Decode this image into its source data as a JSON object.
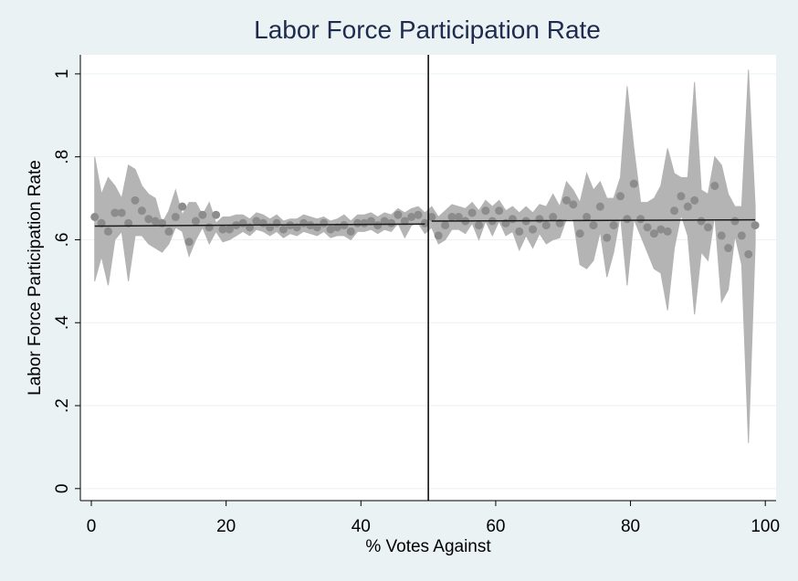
{
  "chart_data": {
    "type": "scatter",
    "title": "Labor Force Participation Rate",
    "x_label": "% Votes Against",
    "y_label": "Labor Force Participation Rate",
    "x": [
      0.5,
      1.5,
      2.5,
      3.5,
      4.5,
      5.5,
      6.5,
      7.5,
      8.5,
      9.5,
      10.5,
      11.5,
      12.5,
      13.5,
      14.5,
      15.5,
      16.5,
      17.5,
      18.5,
      19.5,
      20.5,
      21.5,
      22.5,
      23.5,
      24.5,
      25.5,
      26.5,
      27.5,
      28.5,
      29.5,
      30.5,
      31.5,
      32.5,
      33.5,
      34.5,
      35.5,
      36.5,
      37.5,
      38.5,
      39.5,
      40.5,
      41.5,
      42.5,
      43.5,
      44.5,
      45.5,
      46.5,
      47.5,
      48.5,
      49.5,
      50.5,
      51.5,
      52.5,
      53.5,
      54.5,
      55.5,
      56.5,
      57.5,
      58.5,
      59.5,
      60.5,
      61.5,
      62.5,
      63.5,
      64.5,
      65.5,
      66.5,
      67.5,
      68.5,
      69.5,
      70.5,
      71.5,
      72.5,
      73.5,
      74.5,
      75.5,
      76.5,
      77.5,
      78.5,
      79.5,
      80.5,
      81.5,
      82.5,
      83.5,
      84.5,
      85.5,
      86.5,
      87.5,
      88.5,
      89.5,
      90.5,
      91.5,
      92.5,
      93.5,
      94.5,
      95.5,
      96.5,
      97.5,
      98.5
    ],
    "values": [
      0.655,
      0.64,
      0.62,
      0.665,
      0.665,
      0.64,
      0.695,
      0.67,
      0.65,
      0.645,
      0.64,
      0.62,
      0.655,
      0.68,
      0.595,
      0.645,
      0.66,
      0.63,
      0.66,
      0.625,
      0.625,
      0.635,
      0.64,
      0.63,
      0.645,
      0.64,
      0.63,
      0.64,
      0.625,
      0.635,
      0.63,
      0.64,
      0.635,
      0.63,
      0.64,
      0.625,
      0.63,
      0.635,
      0.62,
      0.64,
      0.64,
      0.645,
      0.635,
      0.645,
      0.64,
      0.66,
      0.645,
      0.655,
      0.66,
      0.64,
      0.655,
      0.61,
      0.635,
      0.655,
      0.655,
      0.645,
      0.665,
      0.635,
      0.67,
      0.645,
      0.67,
      0.64,
      0.65,
      0.62,
      0.645,
      0.625,
      0.65,
      0.635,
      0.655,
      0.64,
      0.695,
      0.685,
      0.615,
      0.655,
      0.635,
      0.68,
      0.605,
      0.635,
      0.705,
      0.65,
      0.735,
      0.65,
      0.63,
      0.615,
      0.625,
      0.62,
      0.67,
      0.705,
      0.68,
      0.695,
      0.645,
      0.63,
      0.73,
      0.61,
      0.58,
      0.645,
      0.61,
      0.565,
      0.635
    ],
    "ci_upper": [
      0.8,
      0.71,
      0.75,
      0.73,
      0.7,
      0.78,
      0.77,
      0.73,
      0.71,
      0.7,
      0.64,
      0.67,
      0.72,
      0.66,
      0.69,
      0.69,
      0.66,
      0.69,
      0.64,
      0.655,
      0.655,
      0.66,
      0.66,
      0.65,
      0.665,
      0.66,
      0.65,
      0.66,
      0.645,
      0.65,
      0.65,
      0.66,
      0.655,
      0.65,
      0.655,
      0.645,
      0.65,
      0.66,
      0.645,
      0.66,
      0.66,
      0.665,
      0.655,
      0.665,
      0.66,
      0.675,
      0.665,
      0.675,
      0.68,
      0.665,
      0.68,
      0.655,
      0.67,
      0.685,
      0.68,
      0.675,
      0.69,
      0.67,
      0.695,
      0.68,
      0.695,
      0.67,
      0.68,
      0.665,
      0.68,
      0.665,
      0.685,
      0.68,
      0.71,
      0.68,
      0.74,
      0.72,
      0.69,
      0.76,
      0.72,
      0.74,
      0.7,
      0.7,
      0.75,
      0.97,
      0.82,
      0.69,
      0.69,
      0.7,
      0.73,
      0.82,
      0.76,
      0.75,
      0.75,
      0.98,
      0.72,
      0.71,
      0.8,
      0.78,
      0.71,
      0.68,
      0.68,
      1.01,
      0.68
    ],
    "ci_lower": [
      0.5,
      0.56,
      0.49,
      0.6,
      0.62,
      0.5,
      0.61,
      0.61,
      0.59,
      0.58,
      0.57,
      0.59,
      0.63,
      0.62,
      0.56,
      0.6,
      0.63,
      0.59,
      0.62,
      0.595,
      0.6,
      0.61,
      0.62,
      0.61,
      0.625,
      0.62,
      0.61,
      0.62,
      0.605,
      0.615,
      0.61,
      0.62,
      0.615,
      0.61,
      0.62,
      0.605,
      0.61,
      0.61,
      0.6,
      0.62,
      0.62,
      0.625,
      0.615,
      0.625,
      0.62,
      0.64,
      0.605,
      0.635,
      0.64,
      0.615,
      0.63,
      0.59,
      0.6,
      0.625,
      0.625,
      0.615,
      0.64,
      0.6,
      0.645,
      0.61,
      0.645,
      0.61,
      0.62,
      0.575,
      0.61,
      0.58,
      0.615,
      0.59,
      0.6,
      0.605,
      0.65,
      0.65,
      0.54,
      0.53,
      0.55,
      0.62,
      0.51,
      0.57,
      0.66,
      0.49,
      0.65,
      0.61,
      0.57,
      0.53,
      0.52,
      0.43,
      0.58,
      0.66,
      0.61,
      0.42,
      0.57,
      0.55,
      0.66,
      0.45,
      0.48,
      0.61,
      0.54,
      0.11,
      0.59
    ],
    "color": "#8c8c8c",
    "band_color": "#b4b4b4",
    "fit_color": "#1a1a1a",
    "fit_lines": [
      {
        "x": [
          0.5,
          49.5
        ],
        "values": [
          0.633,
          0.638
        ]
      },
      {
        "x": [
          50.5,
          98.5
        ],
        "values": [
          0.645,
          0.648
        ]
      }
    ],
    "xline": 50,
    "xlim": [
      -1.63,
      101.6
    ],
    "ylim": [
      -0.029,
      1.046
    ],
    "xticks": [
      0,
      20,
      40,
      60,
      80,
      100
    ],
    "yticks": [
      0,
      {
        "value": 0.2,
        "label": ".2"
      },
      {
        "value": 0.4,
        "label": ".4"
      },
      {
        "value": 0.6,
        "label": ".6"
      },
      {
        "value": 0.8,
        "label": ".8"
      },
      1
    ],
    "grid": true
  }
}
